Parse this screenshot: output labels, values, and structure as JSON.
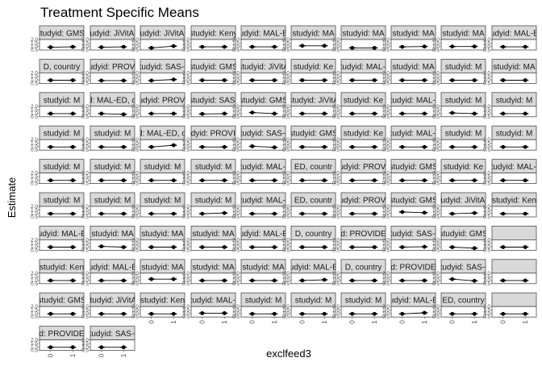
{
  "chart_data": {
    "type": "scatter",
    "title": "Treatment Specific Means",
    "xlabel": "exclfeed3",
    "ylabel": "Estimate",
    "x_categories": [
      "0",
      "1"
    ],
    "y_tick_labels": [
      "0.5",
      "1.0",
      "1.5",
      "2.0"
    ],
    "ylim": [
      0.5,
      2.0
    ],
    "ncols": 10,
    "colors": {
      "panel_bg": "#ffffff",
      "strip_bg": "#d9d9d9",
      "strip_border": "#4d4d4d",
      "point": "#000000"
    },
    "panels": [
      {
        "strip": "studyid: GMS-",
        "values": [
          0.9,
          0.95
        ]
      },
      {
        "strip": "studyid: JiVitA-3",
        "values": [
          0.9,
          0.95
        ]
      },
      {
        "strip": "studyid: JiVitA-4",
        "values": [
          0.8,
          1.05
        ]
      },
      {
        "strip": "studyid: Keny",
        "values": [
          0.95,
          0.95
        ]
      },
      {
        "strip": "studyid: MAL-ED",
        "values": [
          0.95,
          0.95
        ]
      },
      {
        "strip": "studyid: MA",
        "values": [
          1.1,
          1.1
        ]
      },
      {
        "strip": "studyid: MA",
        "values": [
          0.8,
          0.8
        ]
      },
      {
        "strip": "studyid: MA",
        "values": [
          0.95,
          1.0
        ]
      },
      {
        "strip": "studyid: MA",
        "values": [
          1.0,
          1.0
        ]
      },
      {
        "strip": "studyid: MAL-ED",
        "values": [
          0.95,
          0.95
        ]
      },
      {
        "strip": "D, country",
        "values": [
          0.95,
          0.95
        ]
      },
      {
        "strip": "studyid: PROVID",
        "values": [
          0.9,
          0.9
        ]
      },
      {
        "strip": "studyid: SAS-C",
        "values": [
          0.9,
          1.05
        ]
      },
      {
        "strip": "studyid: GMS",
        "values": [
          0.95,
          0.95
        ]
      },
      {
        "strip": "studyid: JiVitA",
        "values": [
          0.95,
          0.95
        ]
      },
      {
        "strip": "studyid: Ke",
        "values": [
          0.95,
          0.95
        ]
      },
      {
        "strip": "studyid: MAL-E",
        "values": [
          0.95,
          0.95
        ]
      },
      {
        "strip": "studyid: MA",
        "values": [
          0.95,
          0.95
        ]
      },
      {
        "strip": "studyid: M",
        "values": [
          0.95,
          0.95
        ]
      },
      {
        "strip": "studyid: MA",
        "values": [
          0.95,
          0.95
        ]
      },
      {
        "strip": "studyid: M",
        "values": [
          0.95,
          0.95
        ]
      },
      {
        "strip": "studyid: MAL-ED, country",
        "values": [
          0.95,
          0.85
        ]
      },
      {
        "strip": "studyid: PROVID",
        "values": [
          0.95,
          0.95
        ]
      },
      {
        "strip": "studyid: SAS-",
        "values": [
          0.9,
          0.95
        ]
      },
      {
        "strip": "studyid: GMS",
        "values": [
          1.1,
          0.95
        ]
      },
      {
        "strip": "studyid: JiVitA",
        "values": [
          0.95,
          0.95
        ]
      },
      {
        "strip": "studyid: Ke",
        "values": [
          0.95,
          0.95
        ]
      },
      {
        "strip": "studyid: MAL-E",
        "values": [
          0.95,
          0.95
        ]
      },
      {
        "strip": "studyid: M",
        "values": [
          1.05,
          0.95
        ]
      },
      {
        "strip": "studyid: M",
        "values": [
          0.95,
          0.95
        ]
      },
      {
        "strip": "studyid: M",
        "values": [
          0.95,
          0.95
        ]
      },
      {
        "strip": "studyid: M",
        "values": [
          0.95,
          0.95
        ]
      },
      {
        "strip": "studyid: MAL-ED, country",
        "values": [
          0.95,
          1.2
        ]
      },
      {
        "strip": "studyid: PROVIDE",
        "values": [
          0.95,
          0.95
        ]
      },
      {
        "strip": "studyid: SAS-C",
        "values": [
          1.05,
          0.9
        ]
      },
      {
        "strip": "studyid: GMS",
        "values": [
          0.95,
          0.95
        ]
      },
      {
        "strip": "studyid: Ke",
        "values": [
          0.95,
          0.95
        ]
      },
      {
        "strip": "studyid: MAL-E",
        "values": [
          0.95,
          0.95
        ]
      },
      {
        "strip": "studyid: M",
        "values": [
          0.95,
          0.95
        ]
      },
      {
        "strip": "studyid: M",
        "values": [
          0.95,
          0.95
        ]
      },
      {
        "strip": "studyid: M",
        "values": [
          0.95,
          0.95
        ]
      },
      {
        "strip": "studyid: M",
        "values": [
          0.95,
          0.95
        ]
      },
      {
        "strip": "studyid: M",
        "values": [
          0.95,
          0.95
        ]
      },
      {
        "strip": "studyid: M",
        "values": [
          0.95,
          0.95
        ]
      },
      {
        "strip": "studyid: MAL-E",
        "values": [
          0.95,
          0.95
        ]
      },
      {
        "strip": "ED, countr",
        "values": [
          0.95,
          0.95
        ]
      },
      {
        "strip": "studyid: PROVID",
        "values": [
          0.95,
          0.95
        ]
      },
      {
        "strip": "studyid: GMS",
        "values": [
          0.95,
          0.95
        ]
      },
      {
        "strip": "studyid: Ke",
        "values": [
          0.95,
          0.95
        ]
      },
      {
        "strip": "studyid: MAL-E",
        "values": [
          0.95,
          0.95
        ]
      },
      {
        "strip": "studyid: M",
        "values": [
          0.95,
          0.95
        ]
      },
      {
        "strip": "studyid: M",
        "values": [
          0.95,
          0.95
        ]
      },
      {
        "strip": "studyid: M",
        "values": [
          0.95,
          0.95
        ]
      },
      {
        "strip": "studyid: M",
        "values": [
          0.95,
          1.05
        ]
      },
      {
        "strip": "studyid: MAL-E",
        "values": [
          0.95,
          0.95
        ]
      },
      {
        "strip": "ED, countr",
        "values": [
          0.95,
          0.95
        ]
      },
      {
        "strip": "studyid: PROVID",
        "values": [
          0.95,
          0.95
        ]
      },
      {
        "strip": "studyid: GMS",
        "values": [
          1.2,
          1.1
        ]
      },
      {
        "strip": "studyid: JiVitA-3",
        "values": [
          0.95,
          1.05
        ]
      },
      {
        "strip": "studyid: Ken",
        "values": [
          0.95,
          0.95
        ]
      },
      {
        "strip": "studyid: MAL-ED",
        "values": [
          0.95,
          0.95
        ]
      },
      {
        "strip": "studyid: MA",
        "values": [
          1.05,
          0.95
        ]
      },
      {
        "strip": "studyid: MA",
        "values": [
          0.95,
          0.95
        ]
      },
      {
        "strip": "studyid: MA",
        "values": [
          0.95,
          0.95
        ]
      },
      {
        "strip": "studyid: MAL-ED",
        "values": [
          0.95,
          0.95
        ]
      },
      {
        "strip": "D, country",
        "values": [
          0.95,
          0.95
        ]
      },
      {
        "strip": "d: PROVIDE",
        "values": [
          0.95,
          0.95
        ]
      },
      {
        "strip": "studyid: SAS-C",
        "values": [
          0.95,
          1.0
        ]
      },
      {
        "strip": "studyid: GMS",
        "values": [
          0.95,
          0.8
        ]
      },
      {
        "strip": "",
        "values": [
          0.95,
          0.95
        ]
      },
      {
        "strip": "studyid: Ken",
        "values": [
          0.95,
          0.95
        ]
      },
      {
        "strip": "studyid: MAL-ED",
        "values": [
          0.95,
          0.95
        ]
      },
      {
        "strip": "studyid: MA",
        "values": [
          1.15,
          1.15
        ]
      },
      {
        "strip": "studyid: MA",
        "values": [
          0.95,
          0.95
        ]
      },
      {
        "strip": "studyid: MA",
        "values": [
          0.95,
          0.95
        ]
      },
      {
        "strip": "studyid: MAL-ED",
        "values": [
          0.95,
          1.05
        ]
      },
      {
        "strip": "D, country",
        "values": [
          0.95,
          0.95
        ]
      },
      {
        "strip": "d: PROVIDE",
        "values": [
          0.95,
          0.95
        ]
      },
      {
        "strip": "studyid: SAS-C",
        "values": [
          1.15,
          0.9
        ]
      },
      {
        "strip": "",
        "values": [
          0.95,
          0.95
        ]
      },
      {
        "strip": "studyid: GMS",
        "values": [
          0.95,
          0.95
        ]
      },
      {
        "strip": "studyid: JiVitA-",
        "values": [
          0.95,
          0.95
        ]
      },
      {
        "strip": "studyid: Ken",
        "values": [
          0.95,
          0.95
        ]
      },
      {
        "strip": "studyid: MAL-E",
        "values": [
          1.05,
          1.05
        ]
      },
      {
        "strip": "studyid: M",
        "values": [
          0.95,
          0.95
        ]
      },
      {
        "strip": "studyid: M",
        "values": [
          0.95,
          0.95
        ]
      },
      {
        "strip": "studyid: M",
        "values": [
          0.95,
          0.95
        ]
      },
      {
        "strip": "studyid: MAL-ED",
        "values": [
          0.95,
          1.1
        ]
      },
      {
        "strip": "ED, country",
        "values": [
          0.95,
          0.95
        ]
      },
      {
        "strip": "",
        "values": [
          0.95,
          0.95
        ]
      },
      {
        "strip": "d: PROVIDE",
        "values": [
          0.95,
          0.95
        ]
      },
      {
        "strip": "studyid: SAS-C",
        "values": [
          0.95,
          0.95
        ]
      }
    ]
  }
}
